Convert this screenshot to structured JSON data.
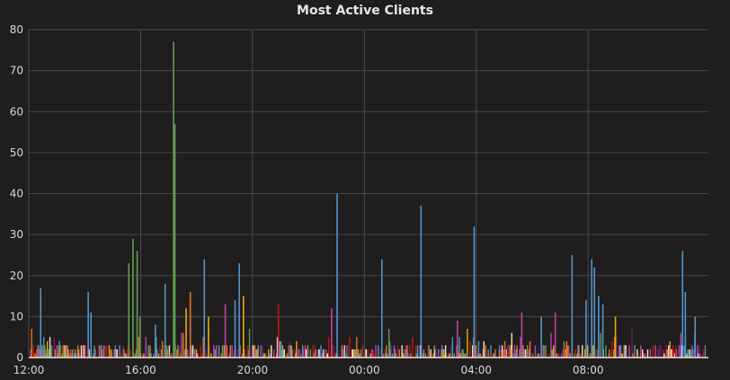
{
  "panel": {
    "title": "Most Active Clients"
  },
  "colors": {
    "background": "#1f1d1d",
    "grid": "#4a4a4a",
    "text": "#d8d9da",
    "series_palette": [
      "#5195ce",
      "#e5ac0e",
      "#ba43a9",
      "#629e51",
      "#f9e2d2",
      "#e0752d",
      "#bf1b00",
      "#6d1f62"
    ]
  },
  "chart_data": {
    "type": "bar",
    "title": "Most Active Clients",
    "xlabel": "",
    "ylabel": "",
    "ylim": [
      0,
      80
    ],
    "y_ticks": [
      0,
      10,
      20,
      30,
      40,
      50,
      60,
      70,
      80
    ],
    "x_range_hours": [
      0,
      24.3
    ],
    "x_ticks": [
      {
        "label": "12:00",
        "hour": 0
      },
      {
        "label": "16:00",
        "hour": 4
      },
      {
        "label": "20:00",
        "hour": 8
      },
      {
        "label": "00:00",
        "hour": 12
      },
      {
        "label": "04:00",
        "hour": 16
      },
      {
        "label": "08:00",
        "hour": 20
      }
    ],
    "grid": true,
    "legend": "none",
    "spikes": [
      {
        "hour": 0.4,
        "value": 17,
        "color": "#5195ce"
      },
      {
        "hour": 2.1,
        "value": 16,
        "color": "#5195ce"
      },
      {
        "hour": 2.2,
        "value": 11,
        "color": "#5195ce"
      },
      {
        "hour": 3.55,
        "value": 23,
        "color": "#629e51"
      },
      {
        "hour": 3.7,
        "value": 29,
        "color": "#629e51"
      },
      {
        "hour": 3.85,
        "value": 26,
        "color": "#629e51"
      },
      {
        "hour": 3.95,
        "value": 10,
        "color": "#629e51"
      },
      {
        "hour": 4.5,
        "value": 8,
        "color": "#5195ce"
      },
      {
        "hour": 4.85,
        "value": 18,
        "color": "#5195ce"
      },
      {
        "hour": 5.15,
        "value": 77,
        "color": "#629e51"
      },
      {
        "hour": 5.2,
        "value": 57,
        "color": "#629e51"
      },
      {
        "hour": 5.6,
        "value": 12,
        "color": "#e5ac0e"
      },
      {
        "hour": 5.75,
        "value": 16,
        "color": "#e0752d"
      },
      {
        "hour": 6.25,
        "value": 24,
        "color": "#5195ce"
      },
      {
        "hour": 6.4,
        "value": 10,
        "color": "#e5ac0e"
      },
      {
        "hour": 7.35,
        "value": 14,
        "color": "#5195ce"
      },
      {
        "hour": 7.5,
        "value": 23,
        "color": "#5195ce"
      },
      {
        "hour": 7.65,
        "value": 15,
        "color": "#e5ac0e"
      },
      {
        "hour": 7.0,
        "value": 13,
        "color": "#ba43a9"
      },
      {
        "hour": 8.9,
        "value": 13,
        "color": "#bf1b00"
      },
      {
        "hour": 10.8,
        "value": 12,
        "color": "#ba43a9"
      },
      {
        "hour": 11.0,
        "value": 40,
        "color": "#5195ce"
      },
      {
        "hour": 12.6,
        "value": 24,
        "color": "#5195ce"
      },
      {
        "hour": 14.0,
        "value": 37,
        "color": "#5195ce"
      },
      {
        "hour": 15.3,
        "value": 9,
        "color": "#ba43a9"
      },
      {
        "hour": 15.9,
        "value": 32,
        "color": "#5195ce"
      },
      {
        "hour": 17.6,
        "value": 11,
        "color": "#ba43a9"
      },
      {
        "hour": 18.3,
        "value": 10,
        "color": "#5195ce"
      },
      {
        "hour": 18.8,
        "value": 11,
        "color": "#ba43a9"
      },
      {
        "hour": 19.4,
        "value": 25,
        "color": "#5195ce"
      },
      {
        "hour": 20.1,
        "value": 24,
        "color": "#5195ce"
      },
      {
        "hour": 20.2,
        "value": 22,
        "color": "#5195ce"
      },
      {
        "hour": 20.35,
        "value": 15,
        "color": "#5195ce"
      },
      {
        "hour": 19.9,
        "value": 14,
        "color": "#5195ce"
      },
      {
        "hour": 20.5,
        "value": 13,
        "color": "#5195ce"
      },
      {
        "hour": 20.95,
        "value": 10,
        "color": "#e5ac0e"
      },
      {
        "hour": 23.35,
        "value": 26,
        "color": "#5195ce"
      },
      {
        "hour": 23.45,
        "value": 16,
        "color": "#5195ce"
      },
      {
        "hour": 23.8,
        "value": 10,
        "color": "#5195ce"
      },
      {
        "hour": 22.9,
        "value": 4,
        "color": "#e0752d"
      }
    ]
  }
}
